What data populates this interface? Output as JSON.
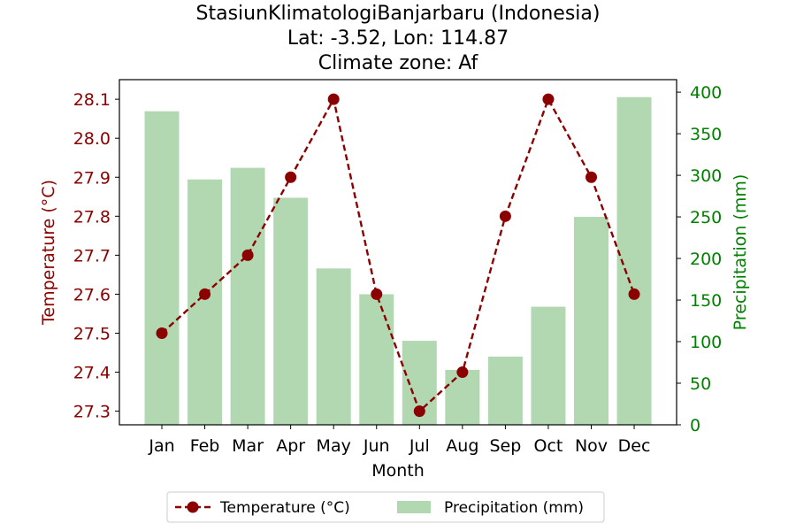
{
  "chart_data": {
    "type": "bar+line",
    "title_lines": [
      "StasiunKlimatologiBanjarbaru (Indonesia)",
      "Lat: -3.52, Lon: 114.87",
      "Climate zone: Af"
    ],
    "xlabel": "Month",
    "ylabel_left": "Temperature (°C)",
    "ylabel_right": "Precipitation (mm)",
    "categories": [
      "Jan",
      "Feb",
      "Mar",
      "Apr",
      "May",
      "Jun",
      "Jul",
      "Aug",
      "Sep",
      "Oct",
      "Nov",
      "Dec"
    ],
    "series": [
      {
        "name": "Temperature (°C)",
        "type": "line",
        "axis": "left",
        "color": "#8b0000",
        "line_style": "dashed",
        "marker": "circle",
        "values": [
          27.5,
          27.6,
          27.7,
          27.9,
          28.1,
          27.6,
          27.3,
          27.4,
          27.8,
          28.1,
          27.9,
          27.6
        ]
      },
      {
        "name": "Precipitation (mm)",
        "type": "bar",
        "axis": "right",
        "color": "#b2d8b2",
        "values": [
          377,
          295,
          309,
          273,
          188,
          157,
          101,
          66,
          82,
          142,
          250,
          394
        ]
      }
    ],
    "ylim_left": [
      27.26,
      28.14
    ],
    "yticks_left": [
      "27.3",
      "27.4",
      "27.5",
      "27.6",
      "27.7",
      "27.8",
      "27.9",
      "28.0",
      "28.1"
    ],
    "ylim_right": [
      0,
      400
    ],
    "yticks_right": [
      "0",
      "50",
      "100",
      "150",
      "200",
      "250",
      "300",
      "350",
      "400"
    ],
    "left_axis_color": "#8b0000",
    "right_axis_color": "#008000",
    "legend_position": "bottom-center",
    "grid": false
  }
}
